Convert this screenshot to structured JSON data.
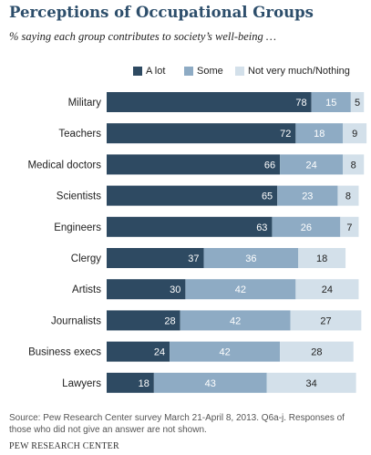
{
  "chart_data": {
    "type": "bar",
    "orientation": "horizontal",
    "stacked": true,
    "title": "Perceptions of Occupational Groups",
    "subtitle": "% saying each group contributes to society’s well-being …",
    "categories": [
      "Military",
      "Teachers",
      "Medical doctors",
      "Scientists",
      "Engineers",
      "Clergy",
      "Artists",
      "Journalists",
      "Business execs",
      "Lawyers"
    ],
    "series": [
      {
        "name": "A lot",
        "color": "#2e4a62",
        "label_color": "#ffffff",
        "values": [
          78,
          72,
          66,
          65,
          63,
          37,
          30,
          28,
          24,
          18
        ]
      },
      {
        "name": "Some",
        "color": "#8eabc4",
        "label_color": "#ffffff",
        "values": [
          15,
          18,
          24,
          23,
          26,
          36,
          42,
          42,
          42,
          43
        ]
      },
      {
        "name": "Not very much/Nothing",
        "color": "#d3e0ea",
        "label_color": "#222222",
        "values": [
          5,
          9,
          8,
          8,
          7,
          18,
          24,
          27,
          28,
          34
        ]
      }
    ],
    "legend_position": "top",
    "grid": false,
    "xlim": [
      0,
      100
    ]
  },
  "footer": {
    "source_line1": "Source: Pew Research Center survey March 21-April 8, 2013. Q6a-j. Responses of",
    "source_line2": "those who did not give an answer are not shown.",
    "credit": "PEW RESEARCH CENTER"
  }
}
